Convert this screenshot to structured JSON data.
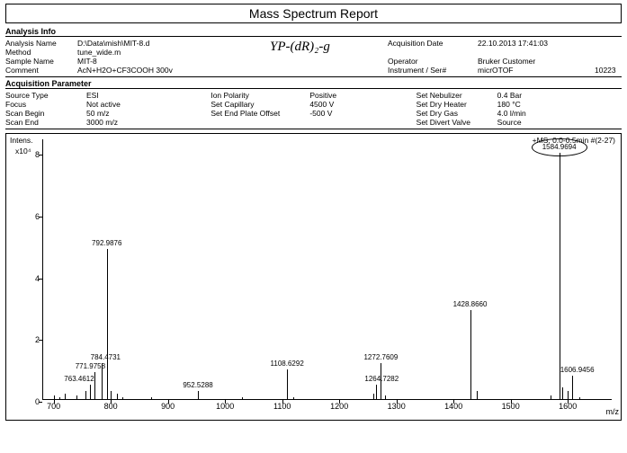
{
  "title": "Mass Spectrum Report",
  "handwritten": "YP-(dR)₂-g",
  "analysis_info": {
    "header": "Analysis Info",
    "left": [
      {
        "label": "Analysis Name",
        "value": "D:\\Data\\mish\\MIT-8.d"
      },
      {
        "label": "Method",
        "value": "tune_wide.m"
      },
      {
        "label": "Sample Name",
        "value": "MIT-8"
      },
      {
        "label": "Comment",
        "value": "AcN+H2O+CF3COOH 300v"
      }
    ],
    "right": [
      {
        "label": "Acquisition Date",
        "value": "22.10.2013 17:41:03"
      },
      {
        "label": "Operator",
        "value": "Bruker Customer"
      },
      {
        "label": "Instrument / Ser#",
        "value": "micrOTOF",
        "extra": "10223"
      }
    ]
  },
  "acq_param": {
    "header": "Acquisition Parameter",
    "cols": [
      [
        {
          "label": "Source Type",
          "value": "ESI"
        },
        {
          "label": "Focus",
          "value": "Not active"
        },
        {
          "label": "Scan Begin",
          "value": "50 m/z"
        },
        {
          "label": "Scan End",
          "value": "3000 m/z"
        }
      ],
      [
        {
          "label": "Ion Polarity",
          "value": "Positive"
        },
        {
          "label": "",
          "value": ""
        },
        {
          "label": "Set Capillary",
          "value": "4500 V"
        },
        {
          "label": "Set End Plate Offset",
          "value": "-500 V"
        }
      ],
      [
        {
          "label": "Set Nebulizer",
          "value": "0.4 Bar"
        },
        {
          "label": "Set Dry Heater",
          "value": "180 °C"
        },
        {
          "label": "Set Dry Gas",
          "value": "4.0 l/min"
        },
        {
          "label": "Set Divert Valve",
          "value": "Source"
        }
      ]
    ]
  },
  "chart": {
    "intens_label": "Intens.",
    "scale_label": "x10⁴",
    "annotation": "+MS, 0.0-0.5min #(2-27)",
    "xaxis": "m/z",
    "xlim": [
      680,
      1680
    ],
    "ylim": [
      0,
      8.5
    ],
    "yticks": [
      0,
      2,
      4,
      6,
      8
    ],
    "xticks": [
      700,
      800,
      900,
      1000,
      1100,
      1200,
      1300,
      1400,
      1500,
      1600
    ],
    "peaks": [
      {
        "mz": 763.4612,
        "h": 0.5,
        "label": "763.4612",
        "lofs": -12,
        "bot": true
      },
      {
        "mz": 771.9758,
        "h": 0.9,
        "label": "771.9758",
        "lofs": -5
      },
      {
        "mz": 784.4731,
        "h": 1.2,
        "label": "784.4731",
        "lofs": 4
      },
      {
        "mz": 792.9876,
        "h": 4.9,
        "label": "792.9876",
        "lofs": 0
      },
      {
        "mz": 952.5288,
        "h": 0.3,
        "label": "952.5288",
        "lofs": 0,
        "bot": true
      },
      {
        "mz": 1108.6292,
        "h": 1.0,
        "label": "1108.6292",
        "lofs": 0
      },
      {
        "mz": 1264.7282,
        "h": 0.5,
        "label": "1264.7282",
        "lofs": 6,
        "bot": true
      },
      {
        "mz": 1272.7609,
        "h": 1.2,
        "label": "1272.7609",
        "lofs": 0
      },
      {
        "mz": 1428.866,
        "h": 2.9,
        "label": "1428.8660",
        "lofs": 0
      },
      {
        "mz": 1584.9694,
        "h": 8.0,
        "label": "1584.9694",
        "lofs": 0,
        "circled": true
      },
      {
        "mz": 1606.9456,
        "h": 0.8,
        "label": "1606.9456",
        "lofs": 6,
        "bot": true
      }
    ],
    "noise": [
      {
        "mz": 700,
        "h": 0.15
      },
      {
        "mz": 710,
        "h": 0.1
      },
      {
        "mz": 720,
        "h": 0.2
      },
      {
        "mz": 740,
        "h": 0.15
      },
      {
        "mz": 755,
        "h": 0.3
      },
      {
        "mz": 800,
        "h": 0.3
      },
      {
        "mz": 810,
        "h": 0.2
      },
      {
        "mz": 820,
        "h": 0.1
      },
      {
        "mz": 870,
        "h": 0.1
      },
      {
        "mz": 1030,
        "h": 0.08
      },
      {
        "mz": 1120,
        "h": 0.1
      },
      {
        "mz": 1260,
        "h": 0.2
      },
      {
        "mz": 1280,
        "h": 0.15
      },
      {
        "mz": 1430,
        "h": 0.2
      },
      {
        "mz": 1440,
        "h": 0.3
      },
      {
        "mz": 1570,
        "h": 0.15
      },
      {
        "mz": 1590,
        "h": 0.4
      },
      {
        "mz": 1600,
        "h": 0.3
      },
      {
        "mz": 1620,
        "h": 0.1
      }
    ]
  }
}
